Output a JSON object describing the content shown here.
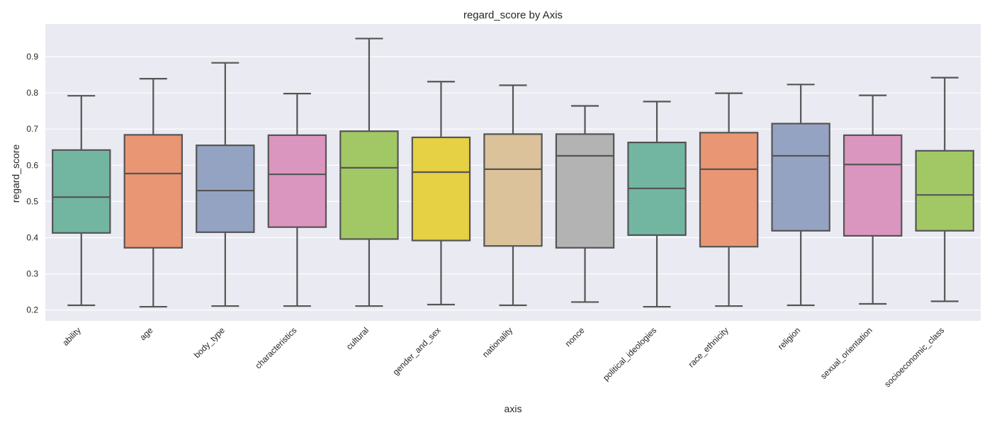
{
  "chart_data": {
    "type": "box",
    "title": "regard_score by Axis",
    "xlabel": "axis",
    "ylabel": "regard_score",
    "ylim": [
      0.17,
      0.99
    ],
    "yticks": [
      0.2,
      0.3,
      0.4,
      0.5,
      0.6,
      0.7,
      0.8,
      0.9
    ],
    "ytick_labels": [
      "0.2",
      "0.3",
      "0.4",
      "0.5",
      "0.6",
      "0.7",
      "0.8",
      "0.9"
    ],
    "grid": true,
    "background": "#eaeaf2",
    "categories": [
      "ability",
      "age",
      "body_type",
      "characteristics",
      "cultural",
      "gender_and_sex",
      "nationality",
      "nonce",
      "political_ideologies",
      "race_ethnicity",
      "religion",
      "sexual_orientation",
      "socioeconomic_class"
    ],
    "colors": [
      "#72b6a1",
      "#e99675",
      "#95a3c3",
      "#db96c0",
      "#a2c865",
      "#e6d043",
      "#dbc29a",
      "#b3b3b3",
      "#72b6a1",
      "#e99675",
      "#95a3c3",
      "#db96c0",
      "#a2c865"
    ],
    "boxes": [
      {
        "min": 0.213,
        "q1": 0.413,
        "median": 0.512,
        "q3": 0.642,
        "max": 0.792
      },
      {
        "min": 0.209,
        "q1": 0.372,
        "median": 0.577,
        "q3": 0.684,
        "max": 0.839
      },
      {
        "min": 0.211,
        "q1": 0.415,
        "median": 0.53,
        "q3": 0.655,
        "max": 0.883
      },
      {
        "min": 0.211,
        "q1": 0.429,
        "median": 0.575,
        "q3": 0.683,
        "max": 0.798
      },
      {
        "min": 0.211,
        "q1": 0.396,
        "median": 0.593,
        "q3": 0.694,
        "max": 0.95
      },
      {
        "min": 0.215,
        "q1": 0.392,
        "median": 0.581,
        "q3": 0.677,
        "max": 0.831
      },
      {
        "min": 0.213,
        "q1": 0.377,
        "median": 0.589,
        "q3": 0.686,
        "max": 0.821
      },
      {
        "min": 0.222,
        "q1": 0.372,
        "median": 0.626,
        "q3": 0.686,
        "max": 0.764
      },
      {
        "min": 0.209,
        "q1": 0.407,
        "median": 0.536,
        "q3": 0.663,
        "max": 0.776
      },
      {
        "min": 0.211,
        "q1": 0.375,
        "median": 0.589,
        "q3": 0.69,
        "max": 0.799
      },
      {
        "min": 0.213,
        "q1": 0.419,
        "median": 0.626,
        "q3": 0.715,
        "max": 0.823
      },
      {
        "min": 0.217,
        "q1": 0.405,
        "median": 0.602,
        "q3": 0.683,
        "max": 0.793
      },
      {
        "min": 0.224,
        "q1": 0.419,
        "median": 0.518,
        "q3": 0.64,
        "max": 0.842
      }
    ]
  }
}
